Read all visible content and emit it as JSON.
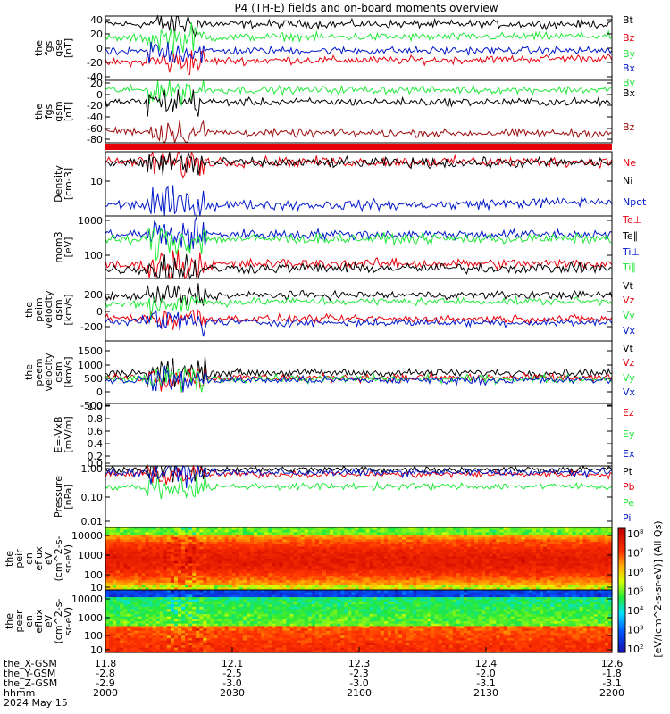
{
  "title": "P4 (TH-E) fields and on-board moments overview",
  "colors": {
    "black": "#000000",
    "red": "#e8000b",
    "green": "#22e83a",
    "blue": "#0017c8",
    "darkred": "#8b0000",
    "maroon": "#9b0a0a"
  },
  "chart_data": [
    {
      "type": "line",
      "id": "fgs-gse",
      "ylabel_lines": [
        "the",
        "fgs",
        "gse",
        "[nT]"
      ],
      "ylim": [
        -40,
        40
      ],
      "yticks": [
        "40",
        "20",
        "0",
        "-20",
        "-40"
      ],
      "series": [
        {
          "name": "Bt",
          "color": "#000000",
          "levels": [
            30,
            30,
            30,
            30
          ]
        },
        {
          "name": "Bz",
          "color": "#e8000b",
          "levels": [
            -18,
            -15,
            -15,
            -12
          ]
        },
        {
          "name": "By",
          "color": "#22e83a",
          "levels": [
            12,
            14,
            14,
            15
          ]
        },
        {
          "name": "Bx",
          "color": "#0017c8",
          "levels": [
            -5,
            -3,
            -3,
            -3
          ]
        }
      ]
    },
    {
      "type": "line",
      "id": "fgs-gsm",
      "ylabel_lines": [
        "the",
        "fgs",
        "gsm",
        "[nT]"
      ],
      "ylim": [
        -100,
        30
      ],
      "yticks": [
        "20",
        "0",
        "-20",
        "-40",
        "-60",
        "-80"
      ],
      "series": [
        {
          "name": "By",
          "color": "#22e83a",
          "levels": [
            10,
            10,
            10,
            10
          ]
        },
        {
          "name": "Bx",
          "color": "#000000",
          "levels": [
            -15,
            -15,
            -15,
            -15
          ]
        },
        {
          "name": "Bz",
          "color": "#9b0a0a",
          "levels": [
            -75,
            -80,
            -80,
            -80
          ]
        }
      ]
    },
    {
      "type": "line",
      "id": "density",
      "ylabel_lines": [
        "Density",
        "[cm-3]"
      ],
      "scale": "log",
      "yticks": [
        "10"
      ],
      "series": [
        {
          "name": "Ne",
          "color": "#e8000b",
          "levels": [
            30,
            30,
            30,
            30
          ]
        },
        {
          "name": "Ni",
          "color": "#000000",
          "levels": [
            28,
            28,
            28,
            28
          ]
        },
        {
          "name": "Npot",
          "color": "#0017c8",
          "levels": [
            2,
            2,
            2,
            2.5
          ]
        }
      ]
    },
    {
      "type": "line",
      "id": "temperature",
      "ylabel_lines": [
        "mom3",
        "[eV]"
      ],
      "scale": "log",
      "yticks": [
        "1000",
        "100"
      ],
      "series": [
        {
          "name": "Te⊥",
          "color": "#e8000b",
          "levels": [
            70,
            80,
            80,
            80
          ]
        },
        {
          "name": "Te∥",
          "color": "#000000",
          "levels": [
            55,
            60,
            60,
            60
          ]
        },
        {
          "name": "Ti⊥",
          "color": "#0017c8",
          "levels": [
            500,
            500,
            500,
            500
          ]
        },
        {
          "name": "Ti∥",
          "color": "#22e83a",
          "levels": [
            350,
            380,
            380,
            380
          ]
        }
      ]
    },
    {
      "type": "line",
      "id": "peim-velocity",
      "ylabel_lines": [
        "the",
        "peim",
        "velocity",
        "gsm",
        "[km/s]"
      ],
      "ylim": [
        -280,
        400
      ],
      "yticks": [
        "200",
        "0",
        "-200"
      ],
      "series": [
        {
          "name": "Vt",
          "color": "#000000",
          "levels": [
            200,
            220,
            220,
            220
          ]
        },
        {
          "name": "Vz",
          "color": "#e8000b",
          "levels": [
            -30,
            -40,
            -40,
            -40
          ]
        },
        {
          "name": "Vy",
          "color": "#22e83a",
          "levels": [
            120,
            150,
            150,
            150
          ]
        },
        {
          "name": "Vx",
          "color": "#0017c8",
          "levels": [
            -60,
            -80,
            -80,
            -80
          ]
        }
      ]
    },
    {
      "type": "line",
      "id": "peem-velocity",
      "ylabel_lines": [
        "the",
        "peem",
        "velocity",
        "gsm",
        "[km/s]"
      ],
      "ylim": [
        -1050,
        1500
      ],
      "yticks": [
        "1500",
        "1000",
        "500",
        "0",
        "-500",
        "-1000"
      ],
      "series": [
        {
          "name": "Vt",
          "color": "#000000",
          "levels": [
            200,
            200,
            200,
            200
          ]
        },
        {
          "name": "Vz",
          "color": "#e8000b",
          "levels": [
            0,
            0,
            0,
            0
          ]
        },
        {
          "name": "Vy",
          "color": "#22e83a",
          "levels": [
            -50,
            -50,
            -50,
            -50
          ]
        },
        {
          "name": "Vx",
          "color": "#0017c8",
          "levels": [
            -100,
            -100,
            -100,
            -100
          ]
        }
      ]
    },
    {
      "type": "line",
      "id": "efield",
      "ylabel_lines": [
        "E=-VxB",
        "[mV/m]"
      ],
      "ylim": [
        0,
        1
      ],
      "yticks": [
        "1.0",
        "0.8",
        "0.6",
        "0.4",
        "0.2",
        "0.0"
      ],
      "series": [
        {
          "name": "Ez",
          "color": "#e8000b",
          "levels": []
        },
        {
          "name": "Ey",
          "color": "#22e83a",
          "levels": []
        },
        {
          "name": "Ex",
          "color": "#0017c8",
          "levels": []
        }
      ]
    },
    {
      "type": "line",
      "id": "pressure",
      "ylabel_lines": [
        "Pressure",
        "[nPa]"
      ],
      "scale": "log",
      "yticks": [
        "1.00",
        "0.10",
        "0.01"
      ],
      "series": [
        {
          "name": "Pt",
          "color": "#000000",
          "levels": [
            0.9,
            0.9,
            0.9,
            0.9
          ]
        },
        {
          "name": "Pb",
          "color": "#e8000b",
          "levels": [
            0.6,
            0.6,
            0.6,
            0.6
          ]
        },
        {
          "name": "Pe",
          "color": "#22e83a",
          "levels": [
            0.18,
            0.2,
            0.2,
            0.2
          ]
        },
        {
          "name": "Pi",
          "color": "#0017c8",
          "levels": [
            0.7,
            0.7,
            0.7,
            0.7
          ]
        }
      ]
    },
    {
      "type": "heatmap",
      "id": "peir-spec",
      "ylabel_lines": [
        "the",
        "peir",
        "en",
        "eflux",
        "eV",
        "(cm^2-s-",
        "sr-eV)"
      ],
      "scale": "log",
      "yticks": [
        "10000",
        "1000",
        "100",
        "10"
      ]
    },
    {
      "type": "heatmap",
      "id": "peer-spec",
      "ylabel_lines": [
        "the",
        "peer",
        "en",
        "eflux",
        "eV",
        "(cm^2-s-",
        "sr-eV)"
      ],
      "scale": "log",
      "yticks": [
        "10000",
        "1000",
        "100",
        "10"
      ]
    }
  ],
  "colorbar": {
    "label": "[eV/(cm^2-s-sr-eV)] (All Qs)",
    "ticks": [
      "10^8",
      "10^7",
      "10^6",
      "10^5",
      "10^4",
      "10^3",
      "10^2"
    ]
  },
  "xaxis": {
    "rows": [
      {
        "label": "the_X-GSM",
        "values": [
          "11.8",
          "12.1",
          "12.3",
          "12.4",
          "12.6"
        ]
      },
      {
        "label": "the_Y-GSM",
        "values": [
          "-2.8",
          "-2.5",
          "-2.3",
          "-2.0",
          "-1.8"
        ]
      },
      {
        "label": "the_Z-GSM",
        "values": [
          "-2.9",
          "-3.0",
          "-3.0",
          "-3.1",
          "-3.1"
        ]
      },
      {
        "label": "hhmm",
        "values": [
          "2000",
          "2030",
          "2100",
          "2130",
          "2200"
        ]
      }
    ],
    "date": "2024 May 15"
  }
}
